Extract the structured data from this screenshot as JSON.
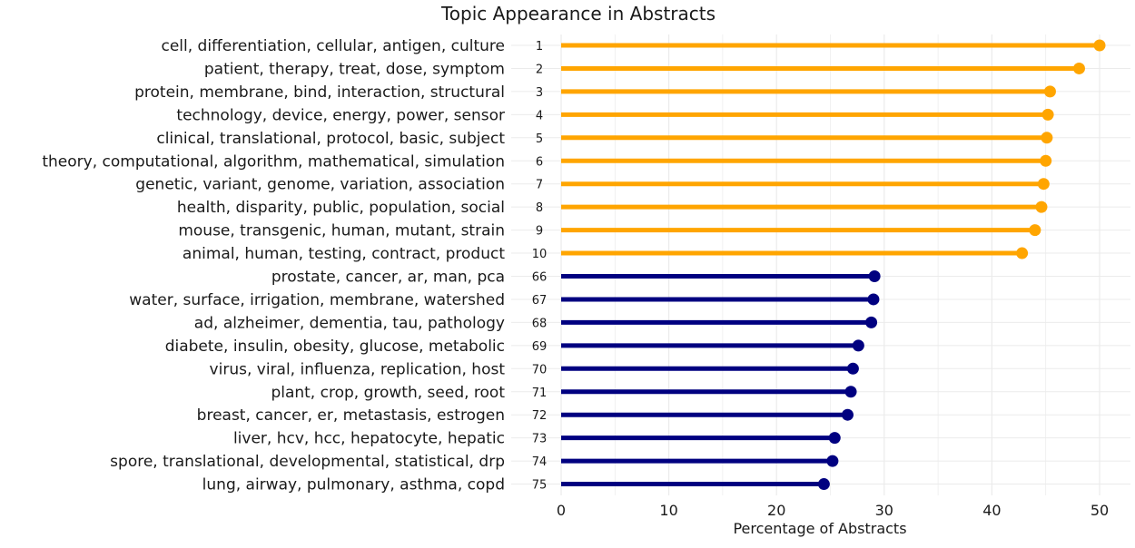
{
  "chart_data": {
    "type": "lollipop",
    "title": "Topic Appearance in Abstracts",
    "xlabel": "Percentage of Abstracts",
    "ylabel": "",
    "xlim": [
      0,
      52
    ],
    "xticks": [
      0,
      10,
      20,
      30,
      40,
      50
    ],
    "grid": true,
    "legend": "none",
    "colors": {
      "top": "#FFA500",
      "bottom": "#000080",
      "text": "#1a1a1a",
      "grid": "#ebebeb"
    },
    "series": [
      {
        "group": "top",
        "rows": [
          {
            "rank": "1",
            "label": "cell, differentiation, cellular, antigen, culture",
            "value": 50.0
          },
          {
            "rank": "2",
            "label": "patient, therapy, treat, dose, symptom",
            "value": 48.1
          },
          {
            "rank": "3",
            "label": "protein, membrane, bind, interaction, structural",
            "value": 45.4
          },
          {
            "rank": "4",
            "label": "technology, device, energy, power, sensor",
            "value": 45.2
          },
          {
            "rank": "5",
            "label": "clinical, translational, protocol, basic, subject",
            "value": 45.1
          },
          {
            "rank": "6",
            "label": "theory, computational, algorithm, mathematical, simulation",
            "value": 45.0
          },
          {
            "rank": "7",
            "label": "genetic, variant, genome, variation, association",
            "value": 44.8
          },
          {
            "rank": "8",
            "label": "health, disparity, public, population, social",
            "value": 44.6
          },
          {
            "rank": "9",
            "label": "mouse, transgenic, human, mutant, strain",
            "value": 44.0
          },
          {
            "rank": "10",
            "label": "animal, human, testing, contract, product",
            "value": 42.8
          }
        ]
      },
      {
        "group": "bottom",
        "rows": [
          {
            "rank": "66",
            "label": "prostate, cancer, ar, man, pca",
            "value": 29.1
          },
          {
            "rank": "67",
            "label": "water, surface, irrigation, membrane, watershed",
            "value": 29.0
          },
          {
            "rank": "68",
            "label": "ad, alzheimer, dementia, tau, pathology",
            "value": 28.8
          },
          {
            "rank": "69",
            "label": "diabete, insulin, obesity, glucose, metabolic",
            "value": 27.6
          },
          {
            "rank": "70",
            "label": "virus, viral, influenza, replication, host",
            "value": 27.1
          },
          {
            "rank": "71",
            "label": "plant, crop, growth, seed, root",
            "value": 26.9
          },
          {
            "rank": "72",
            "label": "breast, cancer, er, metastasis, estrogen",
            "value": 26.6
          },
          {
            "rank": "73",
            "label": "liver, hcv, hcc, hepatocyte, hepatic",
            "value": 25.4
          },
          {
            "rank": "74",
            "label": "spore, translational, developmental, statistical, drp",
            "value": 25.2
          },
          {
            "rank": "75",
            "label": "lung, airway, pulmonary, asthma, copd",
            "value": 24.4
          }
        ]
      }
    ]
  }
}
